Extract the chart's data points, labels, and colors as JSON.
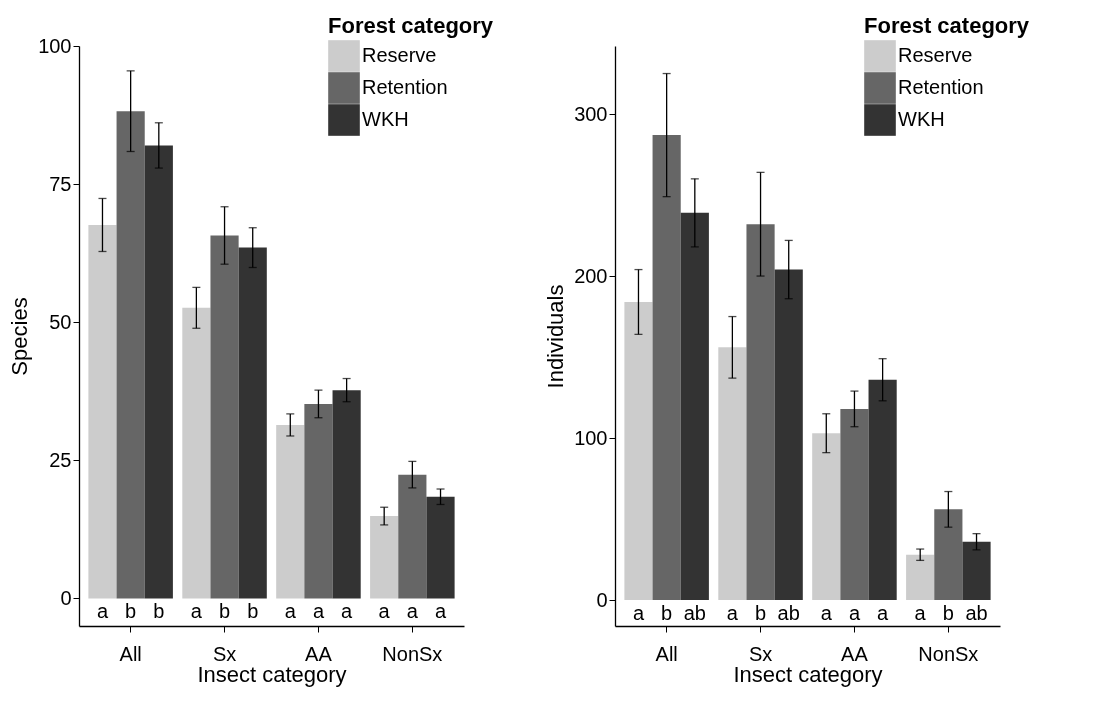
{
  "chart_data": [
    {
      "type": "bar",
      "xlabel": "Insect category",
      "ylabel": "Species",
      "legend_title": "Forest category",
      "legend": "top right",
      "categories": [
        "All",
        "Sx",
        "AA",
        "NonSx"
      ],
      "ylim": [
        -5,
        100
      ],
      "yticks": [
        0,
        25,
        50,
        75,
        100
      ],
      "series": [
        {
          "name": "Reserve",
          "color": "#cccccc",
          "values": [
            67.6,
            52.6,
            31.4,
            14.9
          ],
          "errors": [
            4.8,
            3.7,
            2.0,
            1.6
          ],
          "value_labels": [
            "a",
            "a",
            "a",
            "a"
          ]
        },
        {
          "name": "Retention",
          "color": "#666666",
          "values": [
            88.2,
            65.7,
            35.2,
            22.4
          ],
          "errors": [
            7.3,
            5.2,
            2.5,
            2.4
          ],
          "value_labels": [
            "b",
            "b",
            "a",
            "a"
          ]
        },
        {
          "name": "WKH",
          "color": "#333333",
          "values": [
            82.0,
            63.5,
            37.7,
            18.4
          ],
          "errors": [
            4.1,
            3.6,
            2.1,
            1.4
          ],
          "value_labels": [
            "b",
            "b",
            "a",
            "a"
          ]
        }
      ]
    },
    {
      "type": "bar",
      "xlabel": "Insect category",
      "ylabel": "Individuals",
      "legend_title": "Forest category",
      "legend": "top right",
      "categories": [
        "All",
        "Sx",
        "AA",
        "NonSx"
      ],
      "ylim": [
        -16,
        342
      ],
      "yticks": [
        0,
        100,
        200,
        300
      ],
      "series": [
        {
          "name": "Reserve",
          "color": "#cccccc",
          "values": [
            184,
            156,
            103,
            28
          ],
          "errors": [
            20,
            19,
            12,
            3.5
          ],
          "value_labels": [
            "a",
            "a",
            "a",
            "a"
          ]
        },
        {
          "name": "Retention",
          "color": "#666666",
          "values": [
            287,
            232,
            118,
            56
          ],
          "errors": [
            38,
            32,
            11,
            11
          ],
          "value_labels": [
            "b",
            "b",
            "a",
            "b"
          ]
        },
        {
          "name": "WKH",
          "color": "#333333",
          "values": [
            239,
            204,
            136,
            36
          ],
          "errors": [
            21,
            18,
            13,
            5
          ],
          "value_labels": [
            "ab",
            "ab",
            "a",
            "ab"
          ]
        }
      ]
    }
  ]
}
